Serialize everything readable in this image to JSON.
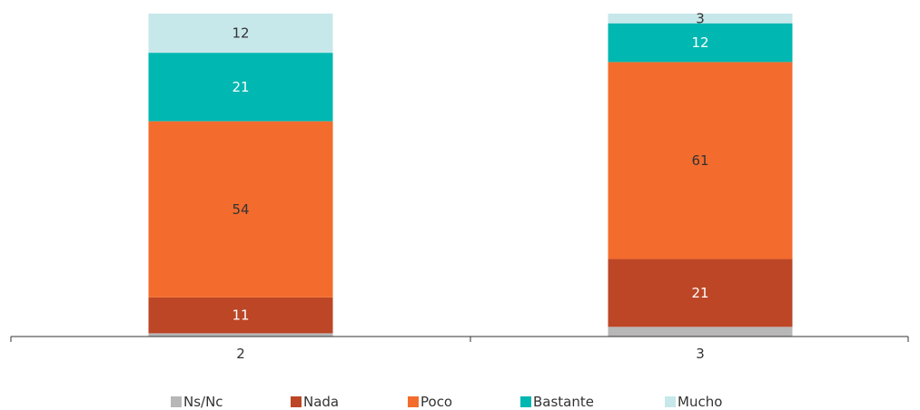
{
  "chart_data": {
    "type": "bar",
    "stacked": true,
    "categories": [
      "2",
      "3"
    ],
    "series": [
      {
        "name": "Ns/Nc",
        "values": [
          1,
          3
        ],
        "color": "#b7b7b7"
      },
      {
        "name": "Nada",
        "values": [
          11,
          21
        ],
        "color": "#bc4626"
      },
      {
        "name": "Poco",
        "values": [
          54,
          61
        ],
        "color": "#f36c2d"
      },
      {
        "name": "Bastante",
        "values": [
          21,
          12
        ],
        "color": "#00b7b1"
      },
      {
        "name": "Mucho",
        "values": [
          12,
          3
        ],
        "color": "#c7e8ea"
      }
    ],
    "data_labels": [
      [
        "",
        ""
      ],
      [
        "11",
        "21"
      ],
      [
        "54",
        "61"
      ],
      [
        "21",
        "12"
      ],
      [
        "12",
        "3"
      ]
    ],
    "label_colors": [
      "#333333",
      "#ffffff",
      "#333333",
      "#ffffff",
      "#333333"
    ],
    "ylim": [
      0,
      100
    ],
    "grid": false,
    "legend_position": "bottom"
  }
}
